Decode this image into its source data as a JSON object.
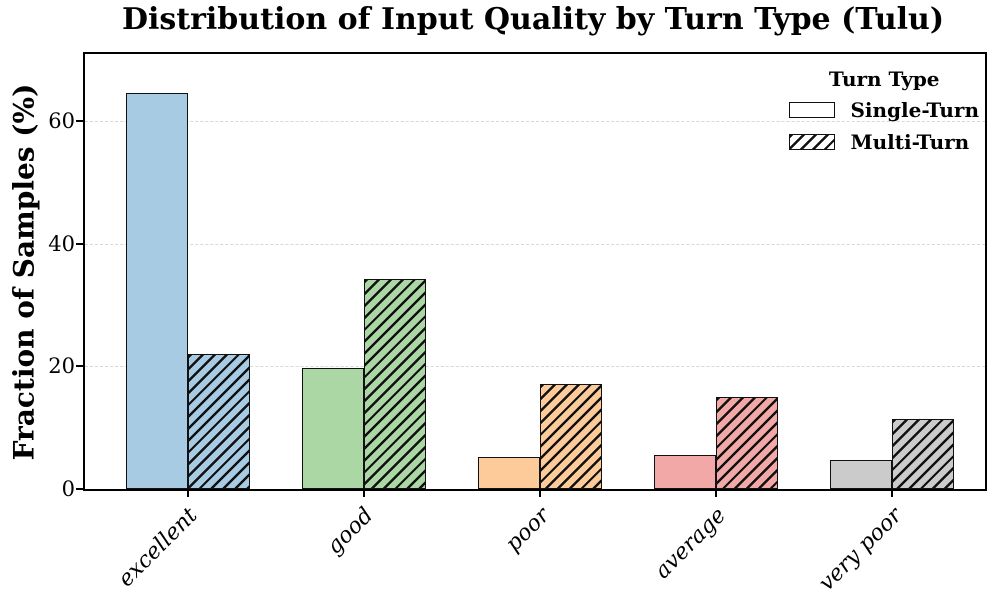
{
  "chart_data": {
    "type": "bar",
    "title": "Distribution of Input Quality by Turn Type (Tulu)",
    "ylabel": "Fraction of Samples (%)",
    "xlabel": "",
    "categories": [
      "excellent",
      "good",
      "poor",
      "average",
      "very poor"
    ],
    "series": [
      {
        "name": "Single-Turn",
        "hatch": "none",
        "values": [
          64.7,
          19.7,
          5.3,
          5.5,
          4.7
        ]
      },
      {
        "name": "Multi-Turn",
        "hatch": "///",
        "values": [
          22.0,
          34.3,
          17.2,
          15.1,
          11.4
        ]
      }
    ],
    "colors": [
      "#a6cbe2",
      "#abd7a4",
      "#fdca9a",
      "#f2a8a7",
      "#cbcbcb"
    ],
    "bar_edge_color": "#111111",
    "legend": {
      "title": "Turn Type",
      "position": "upper right"
    },
    "yticks": [
      0,
      20,
      40,
      60
    ],
    "ylim": [
      0,
      71
    ],
    "grid": {
      "axis": "y",
      "style": "dashed",
      "color": "#d8d8d8"
    }
  }
}
